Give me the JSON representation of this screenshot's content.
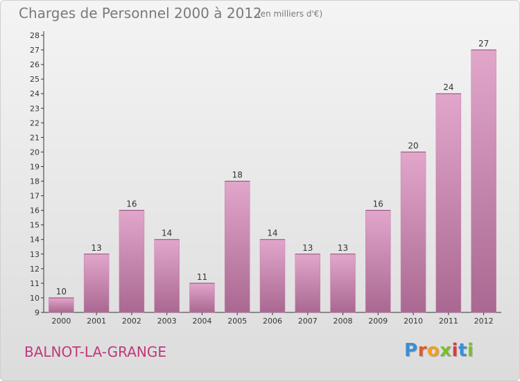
{
  "chart_data": {
    "type": "bar",
    "title": "Charges de Personnel 2000 à 2012",
    "subtitle": "(en milliers d'€)",
    "categories": [
      "2000",
      "2001",
      "2002",
      "2003",
      "2004",
      "2005",
      "2006",
      "2007",
      "2008",
      "2009",
      "2010",
      "2011",
      "2012"
    ],
    "values": [
      10,
      13,
      16,
      14,
      11,
      18,
      14,
      13,
      13,
      16,
      20,
      24,
      27
    ],
    "ylim": [
      9,
      28
    ],
    "yticks": [
      9,
      10,
      11,
      12,
      13,
      14,
      15,
      16,
      17,
      18,
      19,
      20,
      21,
      22,
      23,
      24,
      25,
      26,
      27,
      28
    ],
    "grid": false,
    "bar_color_top": "#e2a6cb",
    "bar_color_bottom": "#a96891"
  },
  "commune": "BALNOT-LA-GRANGE",
  "logo": {
    "letters": [
      {
        "ch": "P",
        "color": "#3a8fd6"
      },
      {
        "ch": "r",
        "color": "#e05a2b"
      },
      {
        "ch": "o",
        "color": "#f0a020"
      },
      {
        "ch": "x",
        "color": "#7bbf2a"
      },
      {
        "ch": "i",
        "color": "#e03a3a"
      },
      {
        "ch": "t",
        "color": "#3a8fd6"
      },
      {
        "ch": "i",
        "color": "#7bbf2a"
      }
    ]
  }
}
